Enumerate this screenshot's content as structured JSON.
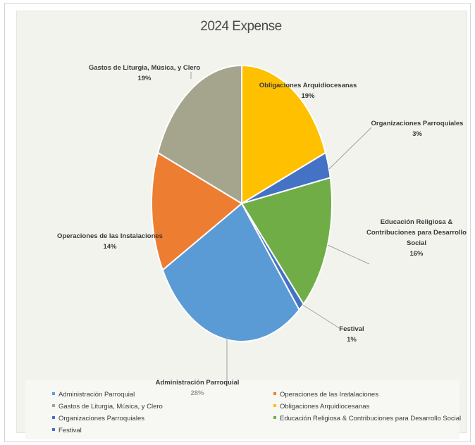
{
  "chart_data": {
    "type": "pie",
    "title": "2024 Expense",
    "slices": [
      {
        "name": "Administración Parroquial",
        "value": 28,
        "label": "28%",
        "color": "#5b9bd5"
      },
      {
        "name": "Operaciones de las Instalaciones",
        "value": 14,
        "label": "14%",
        "color": "#ed7d31"
      },
      {
        "name": "Gastos de Liturgia, Música, y Clero",
        "value": 19,
        "label": "19%",
        "color": "#a5a58d"
      },
      {
        "name": "Obligaciones Arquidiocesanas",
        "value": 19,
        "label": "19%",
        "color": "#ffc000"
      },
      {
        "name": "Organizaciones Parroquiales",
        "value": 3,
        "label": "3%",
        "color": "#4472c4"
      },
      {
        "name": "Educación Religiosa & Contribuciones para Desarrollo Social",
        "value": 16,
        "label": "16%",
        "color": "#70ad47"
      },
      {
        "name": "Festival",
        "value": 1,
        "label": "1%",
        "color": "#4472c4"
      }
    ],
    "slice_labels": [
      {
        "lines": [
          "Administración Parroquial"
        ],
        "pct": "28%"
      },
      {
        "lines": [
          "Operaciones de las Instalaciones"
        ],
        "pct": "14%"
      },
      {
        "lines": [
          "Gastos de Liturgia, Música, y Clero"
        ],
        "pct": "19%"
      },
      {
        "lines": [
          "Obligaciones Arquidiocesanas"
        ],
        "pct": "19%"
      },
      {
        "lines": [
          "Organizaciones Parroquiales"
        ],
        "pct": "3%"
      },
      {
        "lines": [
          "Educación Religiosa &",
          "Contribuciones  para Desarrollo",
          "Social"
        ],
        "pct": "16%"
      },
      {
        "lines": [
          "Festival"
        ],
        "pct": "1%"
      }
    ],
    "legend": [
      "Administración Parroquial",
      "Operaciones de las Instalaciones",
      "Gastos de Liturgia, Música, y Clero",
      "Obligaciones Arquidiocesanas",
      "Organizaciones Parroquiales",
      "Educación Religiosa & Contribuciones para Desarrollo Social",
      "Festival"
    ],
    "legend_position": "bottom"
  }
}
